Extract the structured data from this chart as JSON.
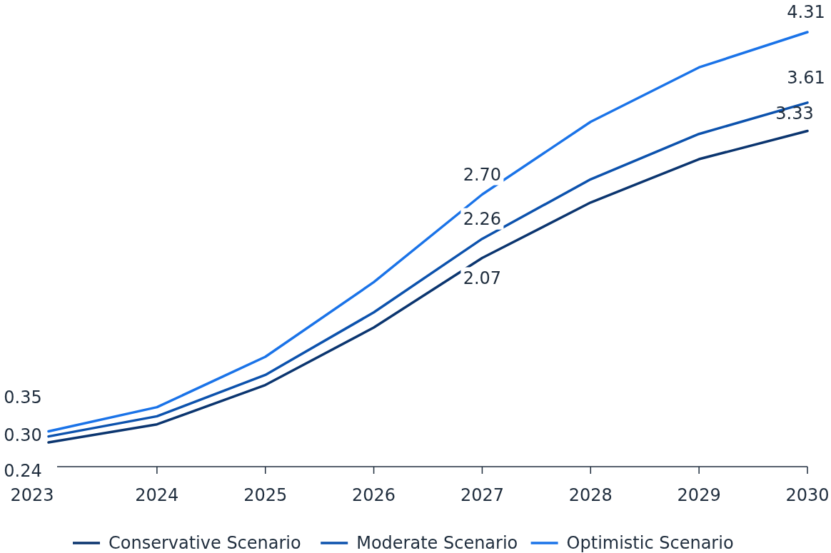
{
  "chart_data": {
    "type": "line",
    "categories": [
      "2023",
      "2024",
      "2025",
      "2026",
      "2027",
      "2028",
      "2029",
      "2030"
    ],
    "tick_labels": "x",
    "legend": "bottom",
    "series": [
      {
        "name": "Conservative Scenario",
        "color": "#0b356f",
        "values": [
          0.24,
          0.42,
          0.81,
          1.38,
          2.07,
          2.62,
          3.05,
          3.33
        ],
        "value_labels": [
          "0.24",
          null,
          null,
          null,
          "2.07",
          null,
          null,
          "3.33"
        ]
      },
      {
        "name": "Moderate Scenario",
        "color": "#0c52ad",
        "values": [
          0.3,
          0.5,
          0.91,
          1.53,
          2.26,
          2.85,
          3.3,
          3.61
        ],
        "value_labels": [
          "0.30",
          null,
          null,
          null,
          "2.26",
          null,
          null,
          "3.61"
        ]
      },
      {
        "name": "Optimistic Scenario",
        "color": "#1a73e8",
        "values": [
          0.35,
          0.59,
          1.09,
          1.83,
          2.7,
          3.42,
          3.96,
          4.31
        ],
        "value_labels": [
          "0.35",
          null,
          null,
          null,
          "2.70",
          null,
          null,
          "4.31"
        ]
      }
    ]
  }
}
